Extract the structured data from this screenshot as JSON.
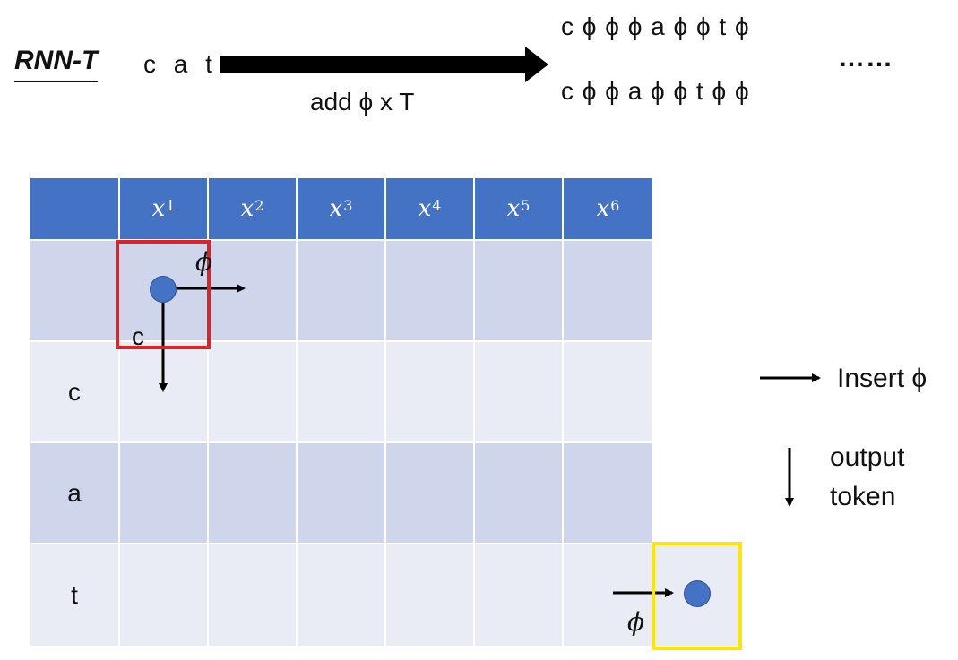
{
  "header": {
    "title": "RNN-T",
    "word": "c a t",
    "arrow_label": "add ϕ x T",
    "sequences": [
      "c ϕ ϕ ϕ a ϕ ϕ t ϕ",
      "c ϕ ϕ a ϕ ϕ t ϕ ϕ"
    ],
    "ellipsis": "……"
  },
  "grid": {
    "columns": [
      {
        "base": "x",
        "sup": "1"
      },
      {
        "base": "x",
        "sup": "2"
      },
      {
        "base": "x",
        "sup": "3"
      },
      {
        "base": "x",
        "sup": "4"
      },
      {
        "base": "x",
        "sup": "5"
      },
      {
        "base": "x",
        "sup": "6"
      }
    ],
    "rows": [
      "",
      "c",
      "a",
      "t"
    ]
  },
  "annotations": {
    "start_right_label": "ϕ",
    "start_down_label": "c",
    "end_label": "ϕ"
  },
  "legend": {
    "insert_label": "Insert ϕ",
    "output_label_line1": "output",
    "output_label_line2": "token"
  },
  "colors": {
    "header_blue": "#4472c4",
    "row_dark": "#cfd5ea",
    "row_light": "#e9ebf5",
    "red_box": "#e22222",
    "yellow_box": "#ffe600"
  }
}
